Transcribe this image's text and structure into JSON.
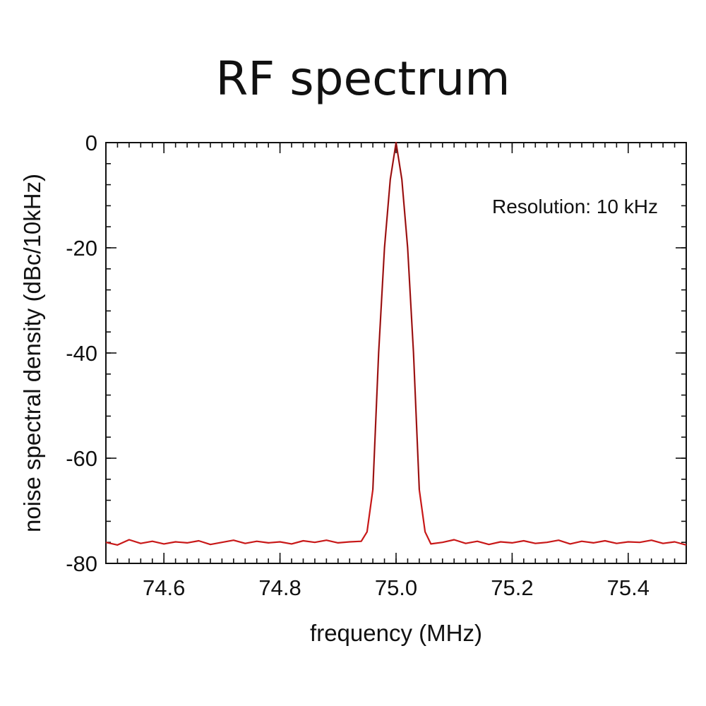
{
  "chart_data": {
    "type": "line",
    "title": "RF spectrum",
    "xlabel": "frequency (MHz)",
    "ylabel": "noise spectral density (dBc/10kHz)",
    "xlim": [
      74.5,
      75.5
    ],
    "ylim": [
      -80,
      0
    ],
    "x_ticks": [
      74.6,
      74.8,
      75.0,
      75.2,
      75.4
    ],
    "x_tick_labels": [
      "74.6",
      "74.8",
      "75.0",
      "75.2",
      "75.4"
    ],
    "y_ticks": [
      0,
      -20,
      -40,
      -60,
      -80
    ],
    "y_tick_labels": [
      "0",
      "-20",
      "-40",
      "-60",
      "-80"
    ],
    "annotation": "Resolution: 10 kHz",
    "grid": false,
    "line_color": "#c81818",
    "series": [
      {
        "x": [
          74.5,
          74.52,
          74.54,
          74.56,
          74.58,
          74.6,
          74.62,
          74.64,
          74.66,
          74.68,
          74.7,
          74.72,
          74.74,
          74.76,
          74.78,
          74.8,
          74.82,
          74.84,
          74.86,
          74.88,
          74.9,
          74.92,
          74.94,
          74.95,
          74.96,
          74.97,
          74.98,
          74.99,
          75.0,
          75.01,
          75.02,
          75.03,
          75.04,
          75.05,
          75.06,
          75.08,
          75.1,
          75.12,
          75.14,
          75.16,
          75.18,
          75.2,
          75.22,
          75.24,
          75.26,
          75.28,
          75.3,
          75.32,
          75.34,
          75.36,
          75.38,
          75.4,
          75.42,
          75.44,
          75.46,
          75.48,
          75.5
        ],
        "values": [
          -76,
          -76.5,
          -75.5,
          -76.2,
          -75.8,
          -76.3,
          -75.9,
          -76.1,
          -75.7,
          -76.4,
          -76,
          -75.6,
          -76.2,
          -75.8,
          -76.1,
          -75.9,
          -76.3,
          -75.7,
          -76,
          -75.6,
          -76.1,
          -75.9,
          -75.8,
          -74,
          -66,
          -40,
          -20,
          -7,
          0,
          -7,
          -20,
          -40,
          -66,
          -74,
          -76.3,
          -76,
          -75.5,
          -76.2,
          -75.8,
          -76.4,
          -75.9,
          -76.1,
          -75.7,
          -76.2,
          -76,
          -75.6,
          -76.3,
          -75.8,
          -76.1,
          -75.7,
          -76.2,
          -75.9,
          -76,
          -75.6,
          -76.2,
          -75.9,
          -76.5
        ]
      }
    ]
  }
}
